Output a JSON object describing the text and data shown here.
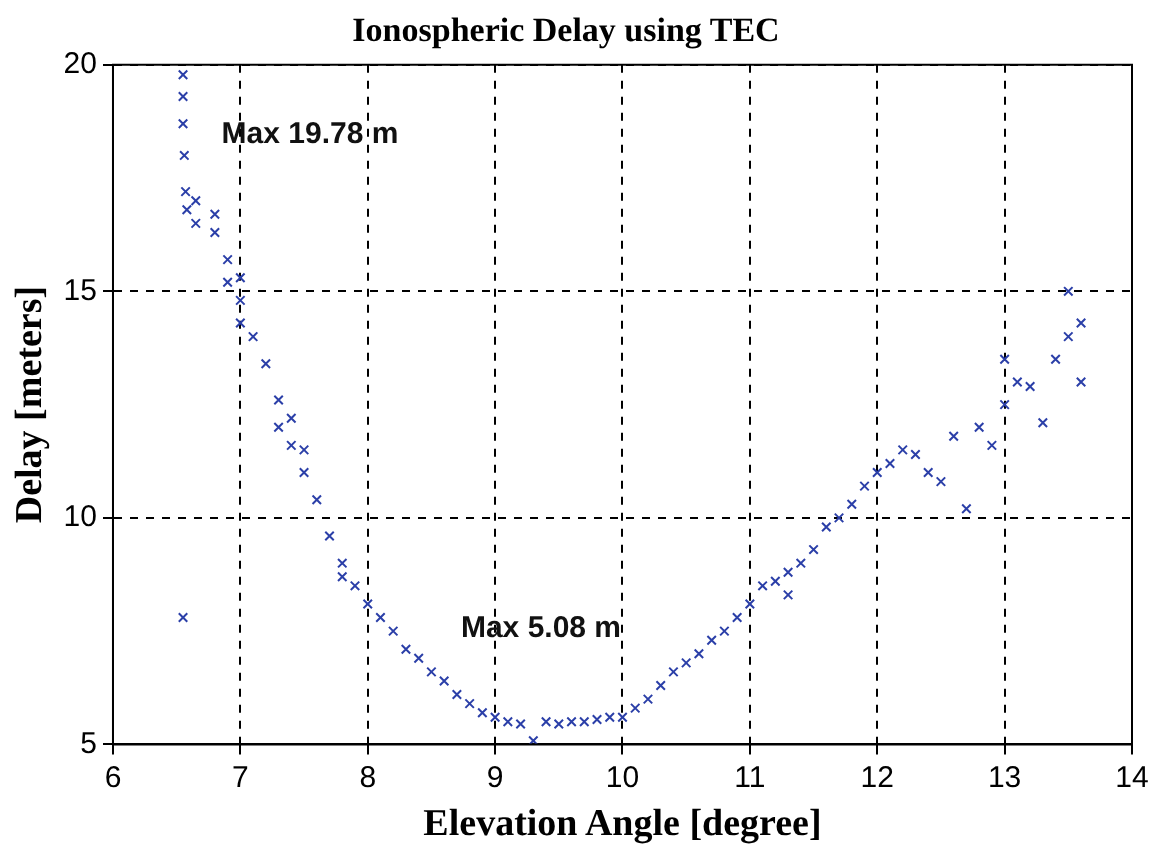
{
  "chart_data": {
    "type": "scatter",
    "title": "Ionospheric Delay using TEC",
    "xlabel": "Elevation Angle [degree]",
    "ylabel": "Delay [meters]",
    "xlim": [
      6,
      14
    ],
    "xticks": [
      6,
      7,
      8,
      9,
      10,
      11,
      12,
      13,
      14
    ],
    "ylim": [
      5,
      20
    ],
    "yticks": [
      5,
      10,
      15,
      20
    ],
    "grid": true,
    "marker": "cross",
    "annotations": [
      {
        "text": "Max 19.78 m",
        "x": 6.57,
        "y": 19.78
      },
      "Max 5.08 m"
    ],
    "series": [
      {
        "color": "#2b3fa8",
        "x": [
          6.55,
          6.55,
          6.55,
          6.56,
          6.57,
          6.58,
          6.55,
          6.65,
          6.65,
          6.8,
          6.8,
          6.9,
          6.9,
          7.0,
          7.0,
          7.0,
          7.1,
          7.2,
          7.3,
          7.3,
          7.4,
          7.4,
          7.5,
          7.5,
          7.6,
          7.7,
          7.8,
          7.8,
          7.9,
          8.0,
          8.1,
          8.2,
          8.3,
          8.4,
          8.5,
          8.6,
          8.7,
          8.8,
          8.9,
          9.0,
          9.1,
          9.2,
          9.3,
          9.4,
          9.5,
          9.6,
          9.7,
          9.8,
          9.9,
          10.0,
          10.1,
          10.2,
          10.3,
          10.4,
          10.5,
          10.6,
          10.7,
          10.8,
          10.9,
          11.0,
          11.1,
          11.2,
          11.3,
          11.3,
          11.4,
          11.5,
          11.6,
          11.7,
          11.8,
          11.9,
          12.0,
          12.1,
          12.2,
          12.3,
          12.4,
          12.5,
          12.6,
          12.7,
          12.8,
          12.9,
          13.0,
          13.0,
          13.1,
          13.2,
          13.3,
          13.4,
          13.5,
          13.5,
          13.6,
          13.6
        ],
        "values": [
          19.78,
          19.3,
          18.7,
          18.0,
          17.2,
          16.8,
          7.8,
          17.0,
          16.5,
          16.7,
          16.3,
          15.7,
          15.2,
          15.3,
          14.8,
          14.3,
          14.0,
          13.4,
          12.6,
          12.0,
          12.2,
          11.6,
          11.5,
          11.0,
          10.4,
          9.6,
          9.0,
          8.7,
          8.5,
          8.1,
          7.8,
          7.5,
          7.1,
          6.9,
          6.6,
          6.4,
          6.1,
          5.9,
          5.7,
          5.6,
          5.5,
          5.45,
          5.08,
          5.5,
          5.45,
          5.5,
          5.5,
          5.55,
          5.6,
          5.6,
          5.8,
          6.0,
          6.3,
          6.6,
          6.8,
          7.0,
          7.3,
          7.5,
          7.8,
          8.1,
          8.5,
          8.6,
          8.8,
          8.3,
          9.0,
          9.3,
          9.8,
          10.0,
          10.3,
          10.7,
          11.0,
          11.2,
          11.5,
          11.4,
          11.0,
          10.8,
          11.8,
          10.2,
          12.0,
          11.6,
          12.5,
          13.5,
          13.0,
          12.9,
          12.1,
          13.5,
          14.0,
          15.0,
          14.3,
          13.0
        ]
      }
    ]
  }
}
